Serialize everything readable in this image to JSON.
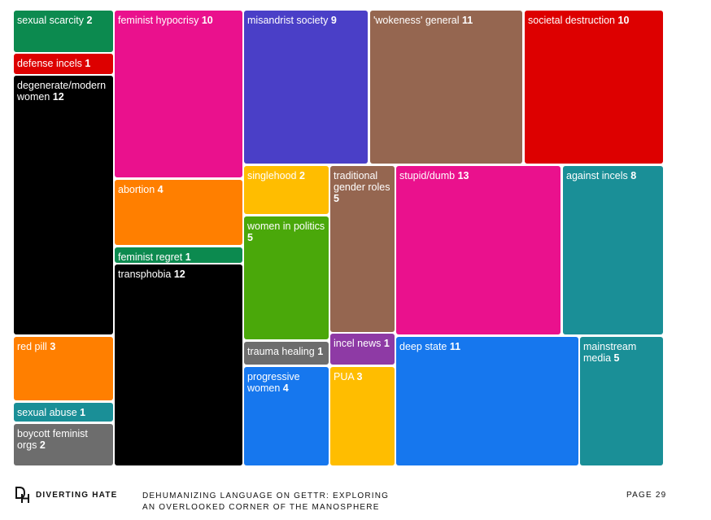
{
  "chart_data": {
    "type": "treemap",
    "items": [
      {
        "label": "sexual scarcity",
        "value": 2,
        "color": "#0c8a4f"
      },
      {
        "label": "defense incels",
        "value": 1,
        "color": "#dd0000"
      },
      {
        "label": "degenerate/modern women",
        "value": 12,
        "color": "#000000"
      },
      {
        "label": "red pill",
        "value": 3,
        "color": "#ff7f00"
      },
      {
        "label": "sexual abuse",
        "value": 1,
        "color": "#1a8f97"
      },
      {
        "label": "boycott feminist orgs",
        "value": 2,
        "color": "#6d6d6d"
      },
      {
        "label": "feminist hypocrisy",
        "value": 10,
        "color": "#ea118d"
      },
      {
        "label": "abortion",
        "value": 4,
        "color": "#ff7f00"
      },
      {
        "label": "feminist regret",
        "value": 1,
        "color": "#0c8a4f"
      },
      {
        "label": "transphobia",
        "value": 12,
        "color": "#000000"
      },
      {
        "label": "misandrist society",
        "value": 9,
        "color": "#4a3fc7"
      },
      {
        "label": "'wokeness' general",
        "value": 11,
        "color": "#956650"
      },
      {
        "label": "societal destruction",
        "value": 10,
        "color": "#dd0000"
      },
      {
        "label": "singlehood",
        "value": 2,
        "color": "#ffbd00"
      },
      {
        "label": "women in politics",
        "value": 5,
        "color": "#4aa80a"
      },
      {
        "label": "trauma healing",
        "value": 1,
        "color": "#6d6d6d"
      },
      {
        "label": "progressive women",
        "value": 4,
        "color": "#1677ee"
      },
      {
        "label": "traditional gender roles",
        "value": 5,
        "color": "#956650"
      },
      {
        "label": "incel news",
        "value": 1,
        "color": "#8e3aa5"
      },
      {
        "label": "PUA",
        "value": 3,
        "color": "#ffbd00"
      },
      {
        "label": "stupid/dumb",
        "value": 13,
        "color": "#ea118d"
      },
      {
        "label": "against incels",
        "value": 8,
        "color": "#1a8f97"
      },
      {
        "label": "deep state",
        "value": 11,
        "color": "#1677ee"
      },
      {
        "label": "mainstream media",
        "value": 5,
        "color": "#1a8f97"
      }
    ]
  },
  "footer": {
    "brand": "DIVERTING HATE",
    "title_line1": "DEHUMANIZING LANGUAGE ON GETTR: EXPLORING",
    "title_line2": "AN OVERLOOKED CORNER OF  THE MANOSPHERE",
    "page": "PAGE 29"
  }
}
